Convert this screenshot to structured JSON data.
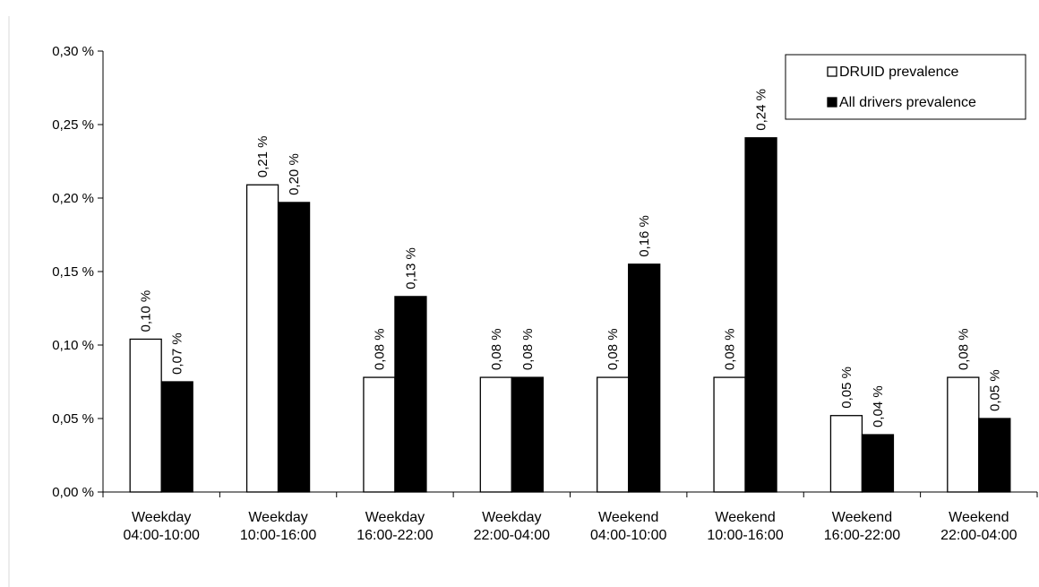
{
  "chart_data": {
    "type": "bar",
    "categories": [
      [
        "Weekday",
        "04:00-10:00"
      ],
      [
        "Weekday",
        "10:00-16:00"
      ],
      [
        "Weekday",
        "16:00-22:00"
      ],
      [
        "Weekday",
        "22:00-04:00"
      ],
      [
        "Weekend",
        "04:00-10:00"
      ],
      [
        "Weekend",
        "10:00-16:00"
      ],
      [
        "Weekend",
        "16:00-22:00"
      ],
      [
        "Weekend",
        "22:00-04:00"
      ]
    ],
    "series": [
      {
        "name": "DRUID prevalence",
        "color": "#ffffff",
        "values": [
          0.104,
          0.209,
          0.078,
          0.078,
          0.078,
          0.078,
          0.052,
          0.078
        ],
        "labels": [
          "0,10 %",
          "0,21 %",
          "0,08 %",
          "0,08 %",
          "0,08 %",
          "0,08 %",
          "0,05 %",
          "0,08 %"
        ]
      },
      {
        "name": "All drivers prevalence",
        "color": "#000000",
        "values": [
          0.075,
          0.197,
          0.133,
          0.078,
          0.155,
          0.241,
          0.039,
          0.05
        ],
        "labels": [
          "0,07 %",
          "0,20 %",
          "0,13 %",
          "0,08 %",
          "0,16 %",
          "0,24 %",
          "0,04 %",
          "0,05 %"
        ]
      }
    ],
    "y_ticks": [
      0,
      0.05,
      0.1,
      0.15,
      0.2,
      0.25,
      0.3
    ],
    "y_tick_labels": [
      "0,00 %",
      "0,05 %",
      "0,10 %",
      "0,15 %",
      "0,20 %",
      "0,25 %",
      "0,30 %"
    ],
    "ylim": [
      0,
      0.3
    ],
    "grid": false,
    "legend_position": "top-right"
  }
}
